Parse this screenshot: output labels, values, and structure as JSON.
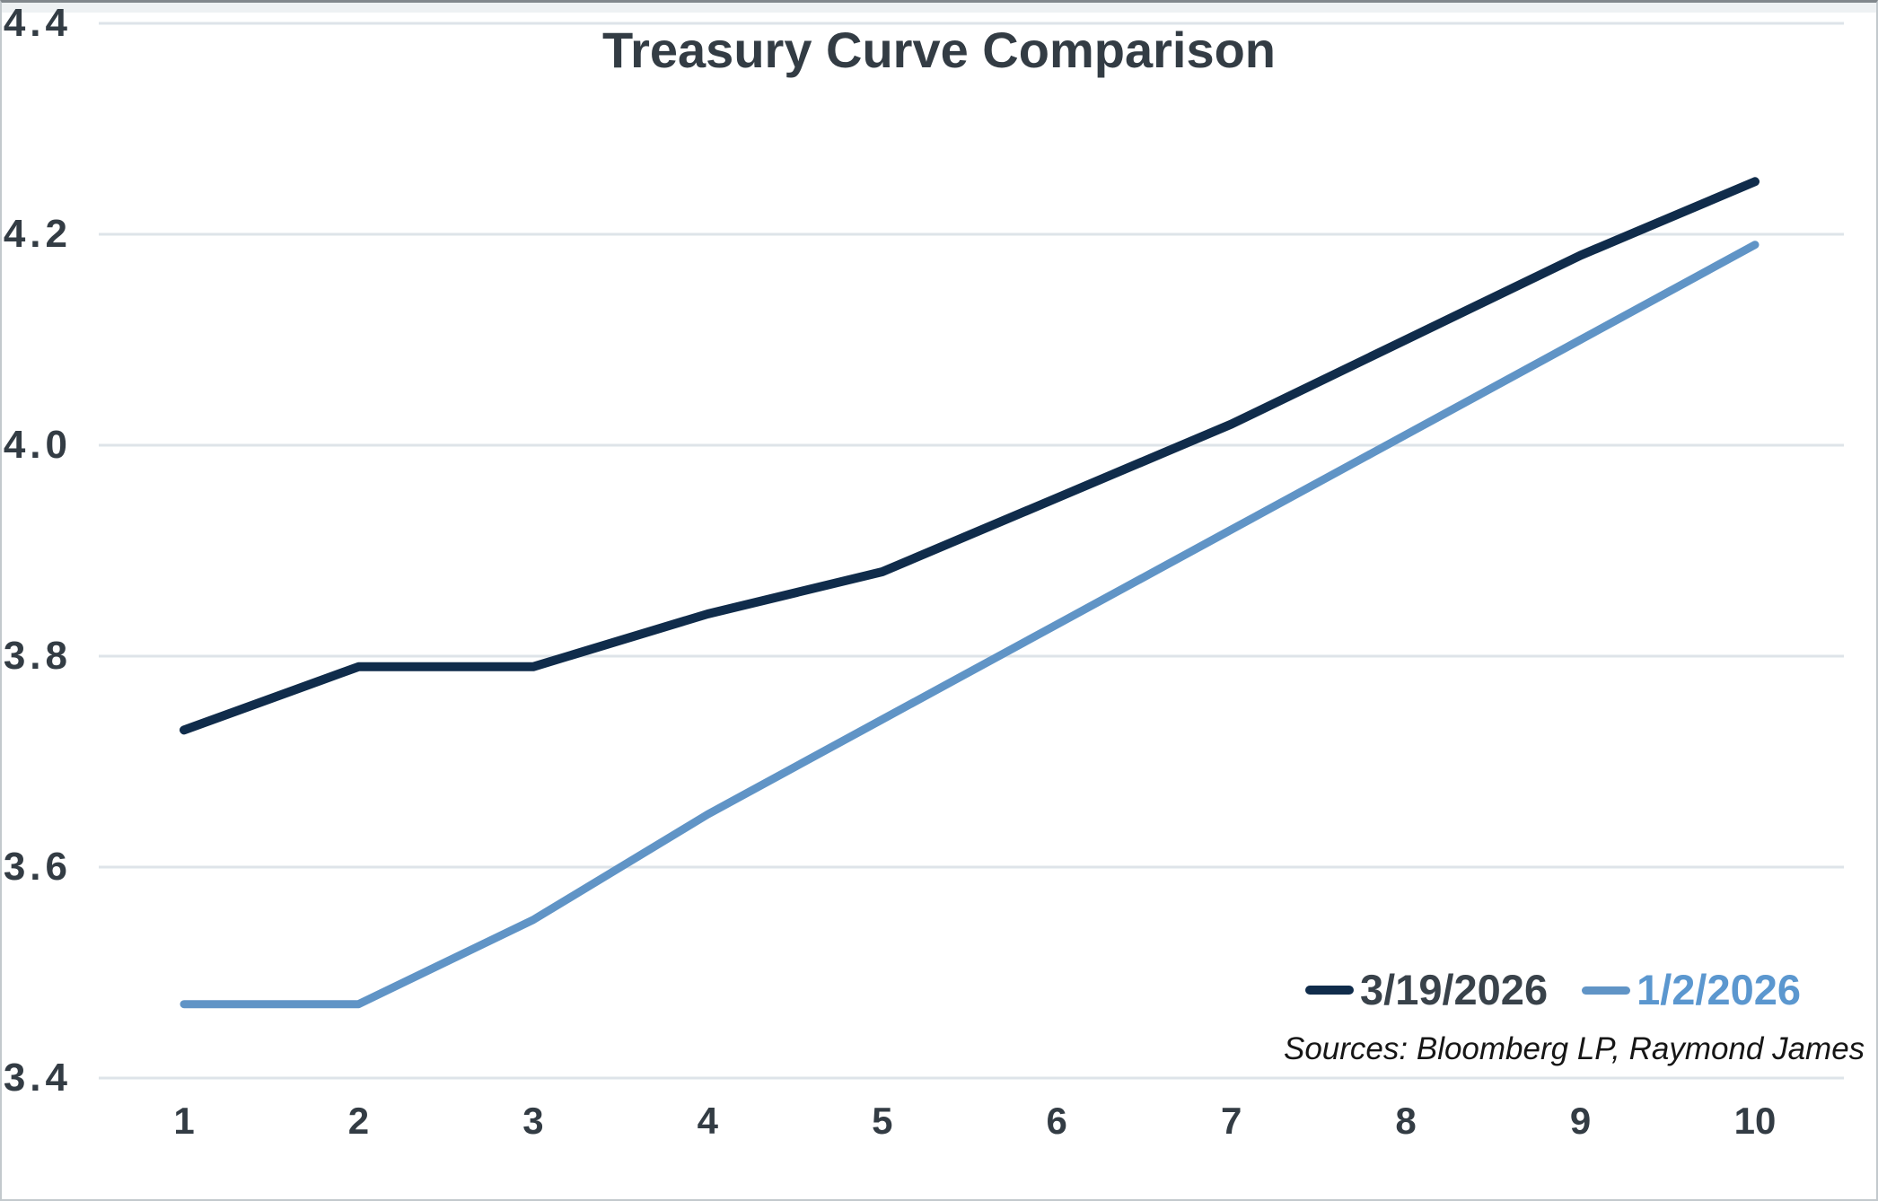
{
  "chart_data": {
    "type": "line",
    "title": "Treasury Curve Comparison",
    "x": [
      1,
      2,
      3,
      4,
      5,
      6,
      7,
      8,
      9,
      10
    ],
    "xtick_labels": [
      "1",
      "2",
      "3",
      "4",
      "5",
      "6",
      "7",
      "8",
      "9",
      "10"
    ],
    "series": [
      {
        "name": "3/19/2026",
        "color": "#102c4b",
        "label_color": "#39424a",
        "stroke_width": 10,
        "values": [
          3.73,
          3.79,
          3.79,
          3.84,
          3.88,
          3.95,
          4.02,
          4.1,
          4.18,
          4.25
        ]
      },
      {
        "name": "1/2/2026",
        "color": "#6094c6",
        "label_color": "#5b97cf",
        "stroke_width": 9,
        "values": [
          3.47,
          3.47,
          3.55,
          3.65,
          3.74,
          3.83,
          3.92,
          4.01,
          4.1,
          4.19
        ]
      }
    ],
    "ylim": [
      3.4,
      4.4
    ],
    "yticks": [
      3.4,
      3.6,
      3.8,
      4.0,
      4.2,
      4.4
    ],
    "ytick_labels": [
      "3.4",
      "3.6",
      "3.8",
      "4.0",
      "4.2",
      "4.4"
    ],
    "grid": "horizontal",
    "gridline_color": "#dee4e9",
    "legend_position": "inside bottom-right",
    "source_note": "Sources: Bloomberg LP, Raymond James"
  }
}
